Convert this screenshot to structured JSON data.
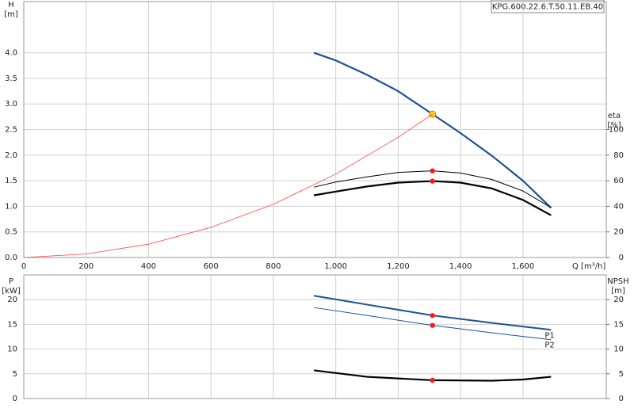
{
  "chart_data": [
    {
      "type": "line",
      "title": "KPG.600.22.6.T.50.11.EB.40",
      "ylabel": "H",
      "yunit": "[m]",
      "y2label": "eta",
      "y2unit": "[%]",
      "xlabel": "Q [m³/h]",
      "xlim": [
        0,
        1867
      ],
      "ylim": [
        0,
        5
      ],
      "y2lim": [
        0,
        200
      ],
      "grid": true,
      "xticks": [
        0,
        200,
        400,
        600,
        800,
        {
          "value": 1000,
          "label": "1,000"
        },
        {
          "value": 1200,
          "label": "1,200"
        },
        {
          "value": 1400,
          "label": "1,400"
        },
        {
          "value": 1600,
          "label": "1,600"
        }
      ],
      "yticks": [
        {
          "value": 0,
          "label": "0.0"
        },
        {
          "value": 0.5,
          "label": "0.5"
        },
        {
          "value": 1,
          "label": "1.0"
        },
        {
          "value": 1.5,
          "label": "1.5"
        },
        {
          "value": 2,
          "label": "2.0"
        },
        {
          "value": 2.5,
          "label": "2.5"
        },
        {
          "value": 3,
          "label": "3.0"
        },
        {
          "value": 3.5,
          "label": "3.5"
        },
        {
          "value": 4,
          "label": "4.0"
        }
      ],
      "y2ticks": [
        0,
        20,
        40,
        60,
        80,
        100
      ],
      "series": [
        {
          "color": "#1f5190",
          "width": 2.2,
          "x": [
            930,
            1000,
            1100,
            1200,
            1310,
            1400,
            1500,
            1600,
            1690
          ],
          "values": [
            4.0,
            3.85,
            3.57,
            3.25,
            2.8,
            2.43,
            1.99,
            1.5,
            0.97
          ],
          "marker": {
            "x": 1310,
            "value": 2.8,
            "color": "#ffd21f"
          }
        },
        {
          "color": "#ff4040",
          "width": 0.8,
          "x": [
            0,
            200,
            400,
            600,
            800,
            1000,
            1200,
            1310
          ],
          "values": [
            0,
            0.07,
            0.26,
            0.59,
            1.04,
            1.63,
            2.35,
            2.8
          ]
        },
        {
          "color": "#000000",
          "width": 1,
          "axis": "y2",
          "x": [
            930,
            1000,
            1100,
            1200,
            1310,
            1400,
            1500,
            1600,
            1690
          ],
          "values": [
            55,
            59,
            63,
            66.5,
            67.7,
            66,
            61,
            52,
            39
          ],
          "marker": {
            "x": 1310,
            "value": 67.7,
            "color": "#ff1a1a"
          }
        },
        {
          "color": "#000000",
          "width": 2.2,
          "axis": "y2",
          "x": [
            930,
            1000,
            1100,
            1200,
            1310,
            1400,
            1500,
            1600,
            1690
          ],
          "values": [
            48.6,
            51.5,
            55.5,
            58.5,
            59.7,
            58.5,
            54,
            45,
            33
          ],
          "marker": {
            "x": 1310,
            "value": 59.7,
            "color": "#ff1a1a"
          }
        }
      ]
    },
    {
      "type": "line",
      "ylabel": "P",
      "yunit": "[kW]",
      "y2label": "NPSH",
      "y2unit": "[m]",
      "xlim": [
        0,
        1867
      ],
      "ylim": [
        0,
        25
      ],
      "y2lim": [
        0,
        25
      ],
      "grid": true,
      "yticks": [
        0,
        5,
        10,
        15,
        20
      ],
      "y2ticks": [
        0,
        5,
        10,
        15,
        20
      ],
      "series": [
        {
          "name": "P1",
          "color": "#1f5190",
          "width": 2,
          "x": [
            930,
            1100,
            1310,
            1500,
            1690
          ],
          "values": [
            20.8,
            19.0,
            16.8,
            15.3,
            13.9
          ],
          "marker": {
            "x": 1310,
            "value": 16.8,
            "color": "#ff1a1a"
          }
        },
        {
          "name": "P2",
          "color": "#1f5190",
          "width": 1,
          "x": [
            930,
            1100,
            1310,
            1500,
            1690
          ],
          "values": [
            18.4,
            16.8,
            14.8,
            13.3,
            11.9
          ],
          "marker": {
            "x": 1310,
            "value": 14.8,
            "color": "#ff1a1a"
          }
        },
        {
          "color": "#000000",
          "width": 2.2,
          "axis": "y2",
          "x": [
            930,
            1100,
            1310,
            1500,
            1600,
            1690
          ],
          "values": [
            5.7,
            4.4,
            3.7,
            3.6,
            3.85,
            4.4
          ],
          "marker": {
            "x": 1310,
            "value": 3.7,
            "color": "#ff1a1a"
          }
        }
      ]
    }
  ]
}
